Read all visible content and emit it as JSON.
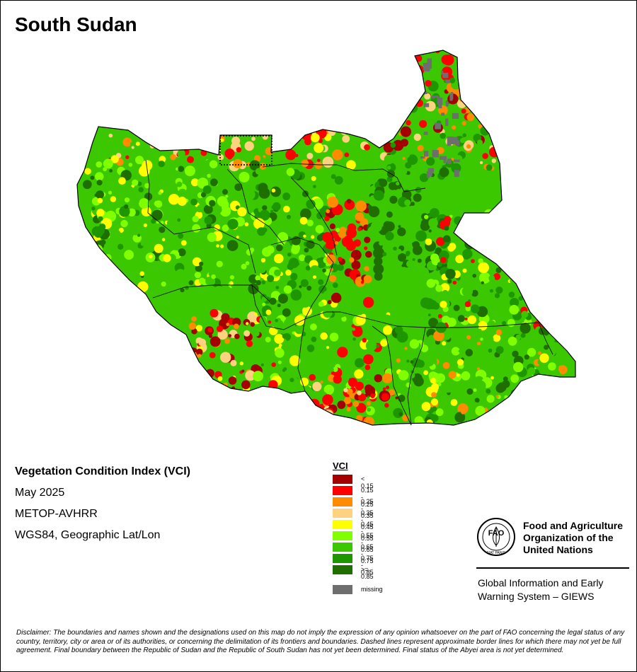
{
  "title": "South Sudan",
  "info": {
    "index_name": "Vegetation Condition Index (VCI)",
    "period": "May 2025",
    "sensor": "METOP-AVHRR",
    "projection": "WGS84, Geographic Lat/Lon"
  },
  "legend": {
    "title": "VCI",
    "classes": [
      {
        "label": "< 0.15",
        "color": "#a50000"
      },
      {
        "label": "0.15 - 0.25",
        "color": "#ff0000"
      },
      {
        "label": "0.25 - 0.35",
        "color": "#ff8c00"
      },
      {
        "label": "0.35 - 0.45",
        "color": "#ffd27f"
      },
      {
        "label": "0.45 - 0.55",
        "color": "#ffff00"
      },
      {
        "label": "0.55 - 0.65",
        "color": "#80ff00"
      },
      {
        "label": "0.65 - 0.75",
        "color": "#3cc800"
      },
      {
        "label": "0.75 - 0.85",
        "color": "#1e9600"
      },
      {
        "label": ">= 0.85",
        "color": "#1e6e00"
      }
    ],
    "missing": {
      "label": "missing",
      "color": "#6e6e6e"
    }
  },
  "organization": {
    "name_line1": "Food and Agriculture",
    "name_line2": "Organization of the",
    "name_line3": "United Nations",
    "logo_text": "FAO",
    "logo_motto": "FIAT PANIS",
    "system_line1": "Global Information and Early",
    "system_line2": "Warning System – GIEWS"
  },
  "disclaimer": "Disclaimer: The boundaries and names shown and the designations used on this map do not imply the expression of any opinion whatsoever on the part of FAO concerning the legal status of any country, territory, city or area or of its authorities, or concerning the delimitation of its frontiers and boundaries. Dashed lines represent approximate border lines for which there may not yet be full agreement.  Final boundary between the Republic of Sudan and the Republic of South Sudan has not yet been determined. Final status of the Abyei area is not yet determined."
}
